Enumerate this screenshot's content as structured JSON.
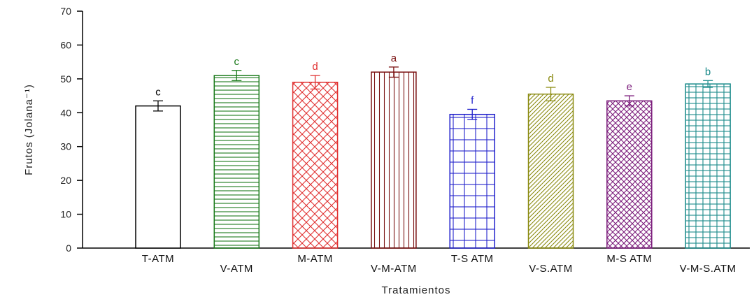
{
  "chart_data": {
    "type": "bar",
    "xlabel": "Tratamientos",
    "ylabel": "Frutos (Jolana⁻¹)",
    "ylim": [
      0,
      70
    ],
    "yticks": [
      0,
      10,
      20,
      30,
      40,
      50,
      60,
      70
    ],
    "grid": false,
    "categories": [
      "T-ATM",
      "V-ATM",
      "M-ATM",
      "V-M-ATM",
      "T-S ATM",
      "V-S.ATM",
      "M-S ATM",
      "V-M-S.ATM"
    ],
    "values": [
      42,
      51,
      49,
      52,
      39.5,
      45.5,
      43.5,
      48.5
    ],
    "errors": [
      1.5,
      1.5,
      2,
      1.5,
      1.5,
      2,
      1.5,
      1
    ],
    "significance_letters": [
      "c",
      "c",
      "d",
      "a",
      "f",
      "d",
      "e",
      "b"
    ],
    "bar_colors": [
      "#000000",
      "#1a7a1a",
      "#e03030",
      "#7a1010",
      "#2222cc",
      "#8a8a10",
      "#7a1a7a",
      "#1a8a8a"
    ],
    "bar_patterns": [
      "none",
      "horizontal",
      "crosshatch-diagonal",
      "vertical",
      "grid",
      "diagonal",
      "crosshatch-dense",
      "grid-fine"
    ]
  }
}
